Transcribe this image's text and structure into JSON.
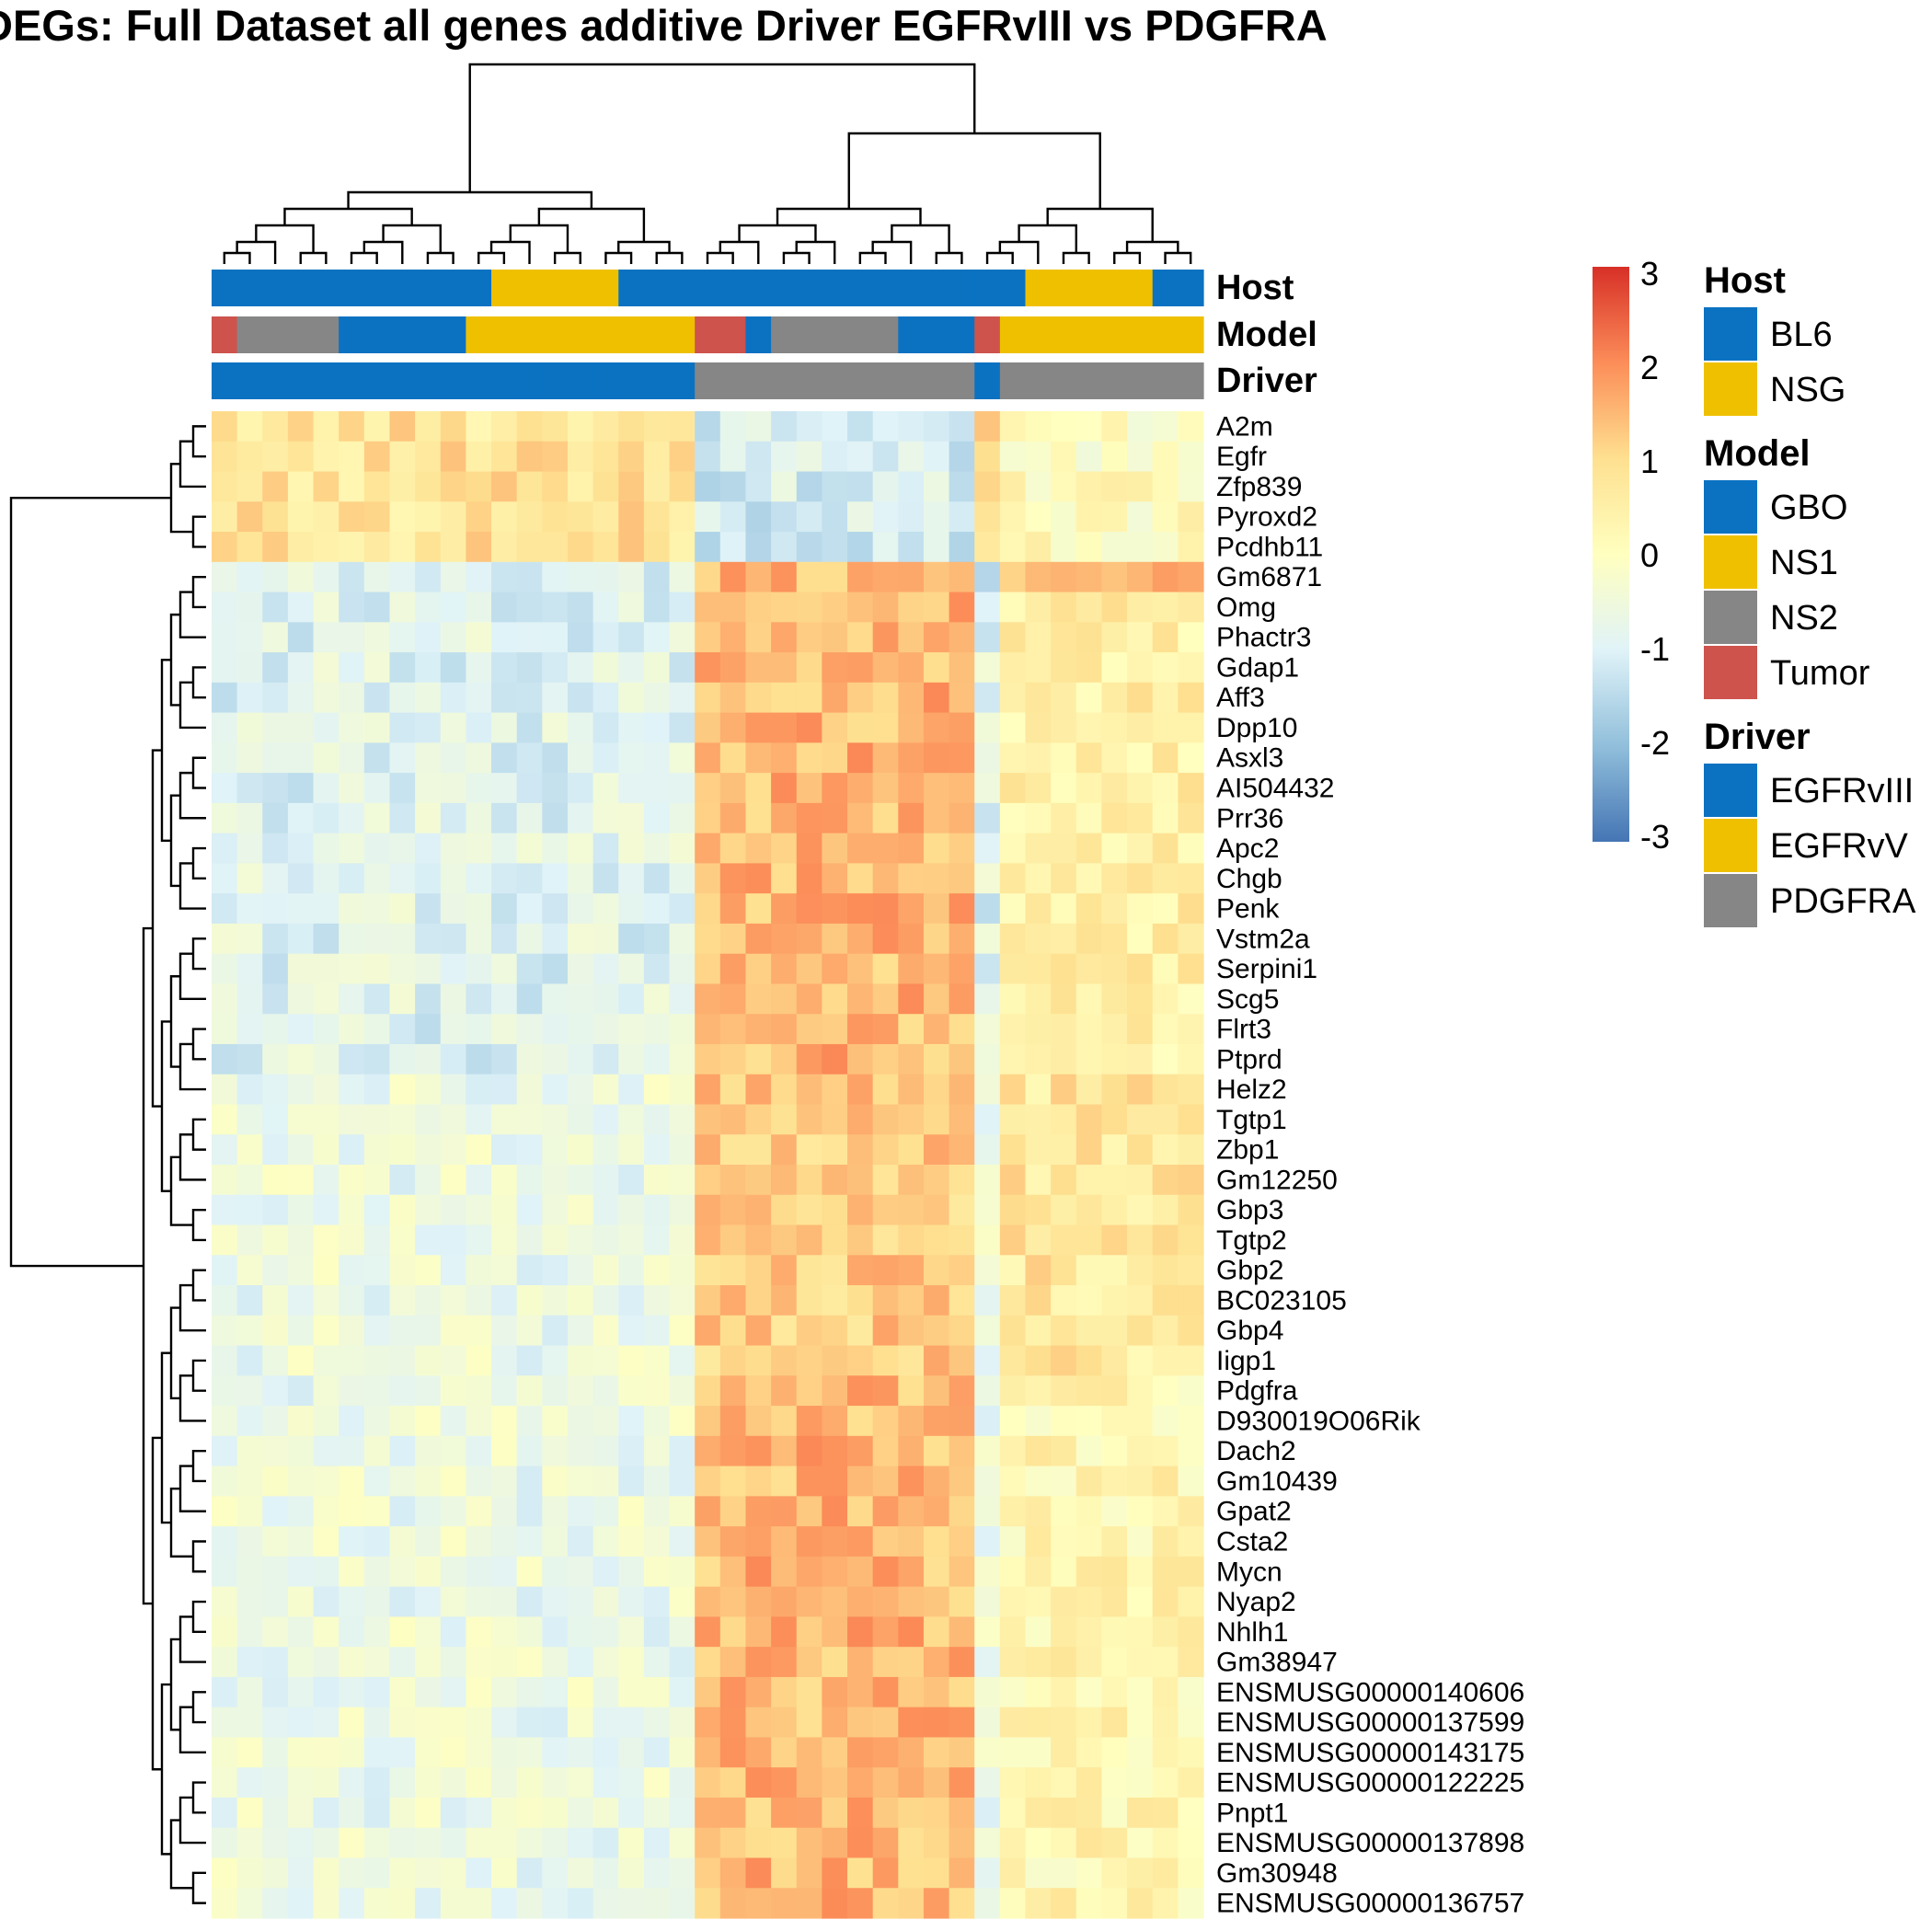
{
  "chart_data": {
    "type": "heatmap",
    "title": "DEGs: Full Dataset all genes additive Driver EGFRvIII vs PDGFRA",
    "genes": [
      "A2m",
      "Egfr",
      "Zfp839",
      "Pyroxd2",
      "Pcdhb11",
      "Gm6871",
      "Omg",
      "Phactr3",
      "Gdap1",
      "Aff3",
      "Dpp10",
      "Asxl3",
      "AI504432",
      "Prr36",
      "Apc2",
      "Chgb",
      "Penk",
      "Vstm2a",
      "Serpini1",
      "Scg5",
      "Flrt3",
      "Ptprd",
      "Helz2",
      "Tgtp1",
      "Zbp1",
      "Gm12250",
      "Gbp3",
      "Tgtp2",
      "Gbp2",
      "BC023105",
      "Gbp4",
      "Iigp1",
      "Pdgfra",
      "D930019O06Rik",
      "Dach2",
      "Gm10439",
      "Gpat2",
      "Csta2",
      "Mycn",
      "Nyap2",
      "Nhlh1",
      "Gm38947",
      "ENSMUSG00000140606",
      "ENSMUSG00000137599",
      "ENSMUSG00000143175",
      "ENSMUSG00000122225",
      "Pnpt1",
      "ENSMUSG00000137898",
      "Gm30948",
      "ENSMUSG00000136757"
    ],
    "n_samples": 39,
    "annotation_rows": [
      "Host",
      "Model",
      "Driver"
    ],
    "column_annotations": {
      "Host": [
        "BL6",
        "BL6",
        "BL6",
        "BL6",
        "BL6",
        "BL6",
        "BL6",
        "BL6",
        "BL6",
        "BL6",
        "BL6",
        "NSG",
        "NSG",
        "NSG",
        "NSG",
        "NSG",
        "BL6",
        "BL6",
        "BL6",
        "BL6",
        "BL6",
        "BL6",
        "BL6",
        "BL6",
        "BL6",
        "BL6",
        "BL6",
        "BL6",
        "BL6",
        "BL6",
        "BL6",
        "BL6",
        "NSG",
        "NSG",
        "NSG",
        "NSG",
        "NSG",
        "BL6",
        "BL6"
      ],
      "Model": [
        "Tumor",
        "NS2",
        "NS2",
        "NS2",
        "NS2",
        "GBO",
        "GBO",
        "GBO",
        "GBO",
        "GBO",
        "NS1",
        "NS1",
        "NS1",
        "NS1",
        "NS1",
        "NS1",
        "NS1",
        "NS1",
        "NS1",
        "Tumor",
        "Tumor",
        "GBO",
        "NS2",
        "NS2",
        "NS2",
        "NS2",
        "NS2",
        "GBO",
        "GBO",
        "GBO",
        "Tumor",
        "NS1",
        "NS1",
        "NS1",
        "NS1",
        "NS1",
        "NS1",
        "NS1",
        "NS1"
      ],
      "Driver": [
        "EGFRvIII",
        "EGFRvIII",
        "EGFRvIII",
        "EGFRvIII",
        "EGFRvIII",
        "EGFRvIII",
        "EGFRvIII",
        "EGFRvIII",
        "EGFRvIII",
        "EGFRvIII",
        "EGFRvIII",
        "EGFRvIII",
        "EGFRvIII",
        "EGFRvIII",
        "EGFRvIII",
        "EGFRvIII",
        "EGFRvIII",
        "EGFRvIII",
        "EGFRvIII",
        "PDGFRA",
        "PDGFRA",
        "PDGFRA",
        "PDGFRA",
        "PDGFRA",
        "PDGFRA",
        "PDGFRA",
        "PDGFRA",
        "PDGFRA",
        "PDGFRA",
        "PDGFRA",
        "EGFRvIII",
        "PDGFRA",
        "PDGFRA",
        "PDGFRA",
        "PDGFRA",
        "PDGFRA",
        "PDGFRA",
        "PDGFRA",
        "PDGFRA"
      ]
    },
    "gene_block_means": [
      {
        "genes": [
          "A2m",
          "Egfr",
          "Zfp839",
          "Pyroxd2",
          "Pcdhb11"
        ],
        "left": 0.8,
        "mid": -1.1,
        "right": 0.05
      },
      {
        "genes": [
          "Gm6871"
        ],
        "left": -1.0,
        "mid": 1.5,
        "right": 1.3
      },
      {
        "genes": [
          "Omg",
          "Phactr3",
          "Gdap1",
          "Aff3",
          "Dpp10",
          "Asxl3",
          "AI504432",
          "Prr36",
          "Apc2",
          "Chgb",
          "Penk",
          "Vstm2a",
          "Serpini1",
          "Scg5",
          "Flrt3",
          "Ptprd"
        ],
        "left": -0.9,
        "mid": 1.5,
        "right": 0.5
      },
      {
        "genes": [
          "Helz2",
          "Tgtp1",
          "Zbp1",
          "Gm12250",
          "Gbp3",
          "Tgtp2",
          "Gbp2",
          "BC023105",
          "Gbp4",
          "Iigp1"
        ],
        "left": -0.6,
        "mid": 1.2,
        "right": 0.7
      },
      {
        "genes": [
          "Pdgfra",
          "D930019O06Rik",
          "Dach2",
          "Gm10439",
          "Gpat2",
          "Csta2",
          "Mycn",
          "Nyap2",
          "Nhlh1",
          "Gm38947",
          "ENSMUSG00000140606",
          "ENSMUSG00000137599",
          "ENSMUSG00000143175",
          "ENSMUSG00000122225",
          "Pnpt1",
          "ENSMUSG00000137898",
          "Gm30948",
          "ENSMUSG00000136757"
        ],
        "left": -0.6,
        "mid": 1.5,
        "right": 0.3
      }
    ],
    "colorbar": {
      "min": -3,
      "max": 3,
      "ticks": [
        "3",
        "2",
        "1",
        "0",
        "-1",
        "-2",
        "-3"
      ]
    },
    "legends": [
      {
        "title": "Host",
        "items": [
          {
            "label": "BL6",
            "color": "#0b72c2"
          },
          {
            "label": "NSG",
            "color": "#efc000"
          }
        ]
      },
      {
        "title": "Model",
        "items": [
          {
            "label": "GBO",
            "color": "#0b72c2"
          },
          {
            "label": "NS1",
            "color": "#efc000"
          },
          {
            "label": "NS2",
            "color": "#868686"
          },
          {
            "label": "Tumor",
            "color": "#cd534c"
          }
        ]
      },
      {
        "title": "Driver",
        "items": [
          {
            "label": "EGFRvIII",
            "color": "#0b72c2"
          },
          {
            "label": "EGFRvV",
            "color": "#efc000"
          },
          {
            "label": "PDGFRA",
            "color": "#868686"
          }
        ]
      }
    ],
    "colors": {
      "BL6": "#0b72c2",
      "NSG": "#efc000",
      "GBO": "#0b72c2",
      "NS1": "#efc000",
      "NS2": "#868686",
      "Tumor": "#cd534c",
      "EGFRvIII": "#0b72c2",
      "EGFRvV": "#efc000",
      "PDGFRA": "#868686"
    }
  }
}
